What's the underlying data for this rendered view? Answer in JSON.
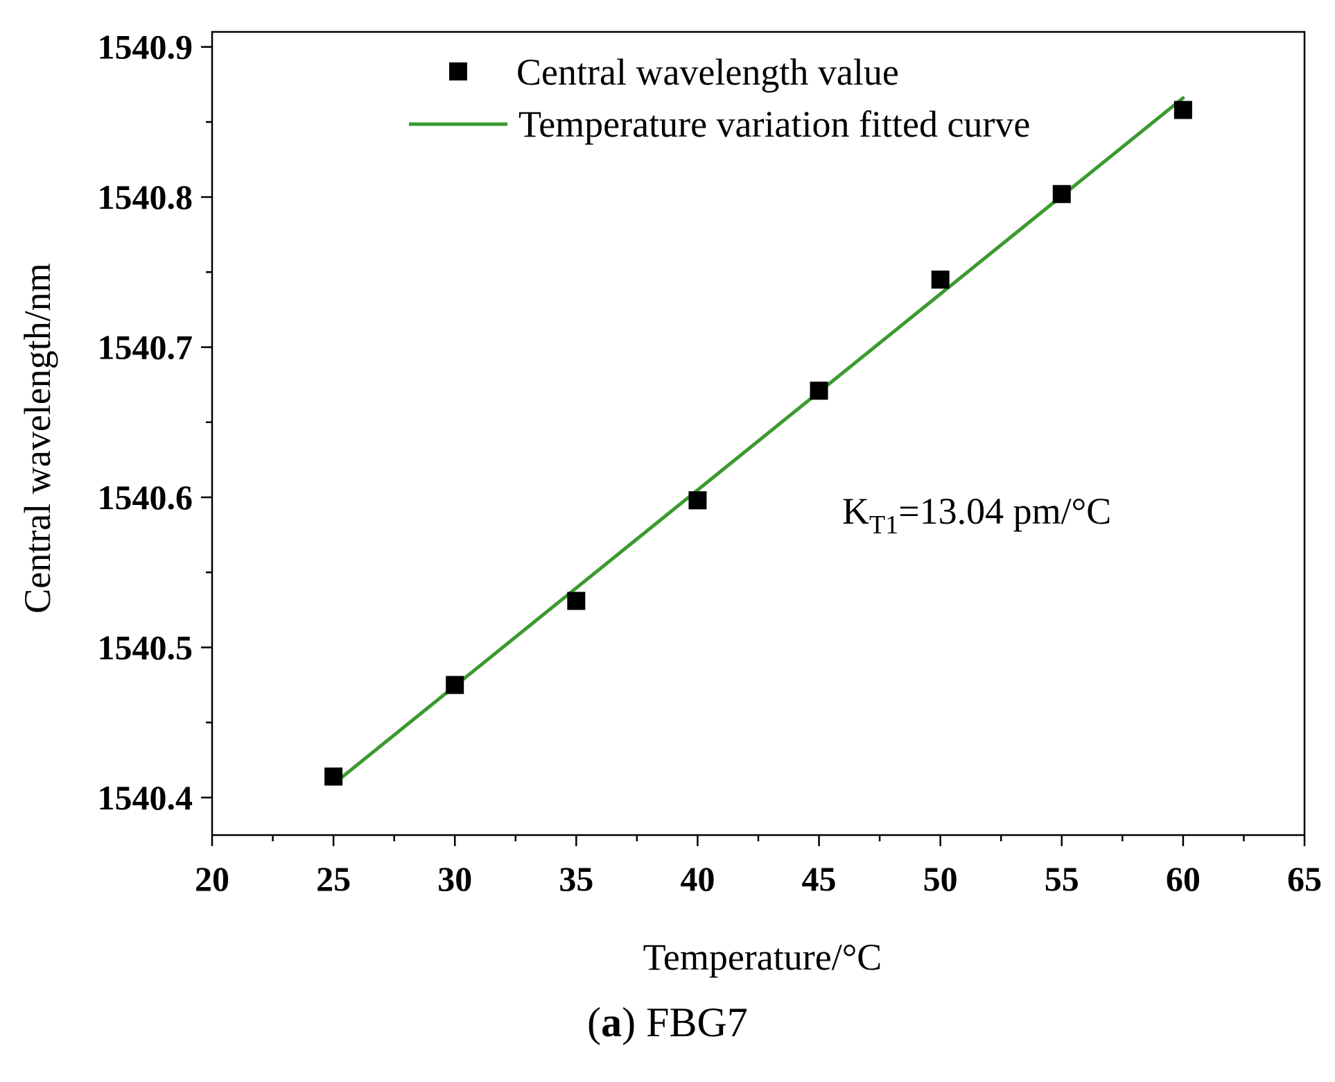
{
  "chart_data": {
    "type": "scatter",
    "xlabel": "Temperature/°C",
    "ylabel": "Central wavelength/nm",
    "xlim": [
      20,
      65
    ],
    "ylim": [
      1540.375,
      1540.91
    ],
    "x_ticks": [
      20,
      25,
      30,
      35,
      40,
      45,
      50,
      55,
      60,
      65
    ],
    "y_ticks": [
      1540.4,
      1540.5,
      1540.6,
      1540.7,
      1540.8,
      1540.9
    ],
    "x_tick_labels": [
      "20",
      "25",
      "30",
      "35",
      "40",
      "45",
      "50",
      "55",
      "60",
      "65"
    ],
    "y_tick_labels": [
      "1540.4",
      "1540.5",
      "1540.6",
      "1540.7",
      "1540.8",
      "1540.9"
    ],
    "series": [
      {
        "name": "Central wavelength value",
        "kind": "scatter",
        "color": "#000000",
        "x": [
          25,
          30,
          35,
          40,
          45,
          50,
          55,
          60
        ],
        "y": [
          1540.414,
          1540.475,
          1540.531,
          1540.598,
          1540.671,
          1540.745,
          1540.802,
          1540.858
        ]
      },
      {
        "name": "Temperature variation fitted curve",
        "kind": "line",
        "color": "#3a9a2e",
        "x": [
          25,
          60
        ],
        "y": [
          1540.409,
          1540.866
        ]
      }
    ],
    "legend_position": "top",
    "annotation": {
      "base": "K",
      "subscript": "T1",
      "rest": "=13.04 pm/°C"
    }
  },
  "caption": {
    "open_paren": "(",
    "letter": "a",
    "close_paren": ")",
    "label": "FBG7"
  }
}
